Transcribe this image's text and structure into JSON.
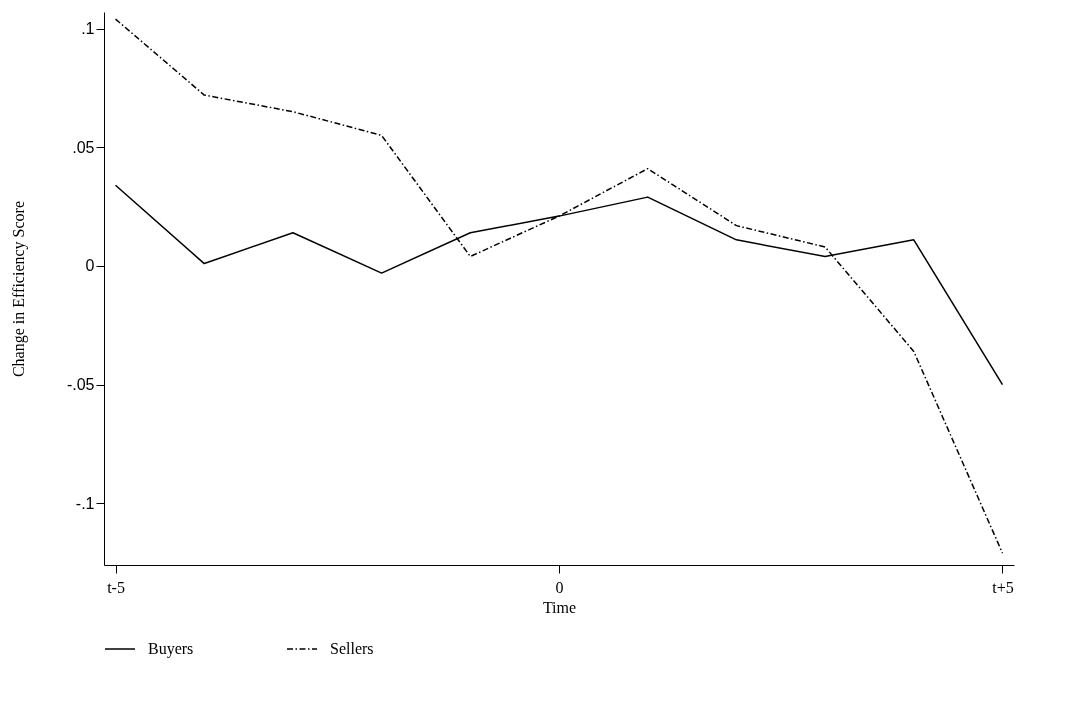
{
  "chart_data": {
    "type": "line",
    "xlabel": "Time",
    "ylabel": "Change in Efficiency Score",
    "categories": [
      "t-5",
      null,
      null,
      null,
      null,
      "0",
      null,
      null,
      null,
      null,
      "t+5"
    ],
    "series": [
      {
        "name": "Buyers",
        "color": "#000000",
        "line_style": "solid",
        "values": [
          0.034,
          0.001,
          0.014,
          -0.003,
          0.014,
          0.021,
          0.029,
          0.011,
          0.004,
          0.011,
          -0.05
        ]
      },
      {
        "name": "Sellers",
        "color": "#000000",
        "line_style": "dashdot",
        "values": [
          0.104,
          0.072,
          0.065,
          0.055,
          0.004,
          0.021,
          0.041,
          0.017,
          0.008,
          -0.036,
          -0.121
        ]
      }
    ],
    "ylim": [
      -0.126,
      0.107
    ],
    "yticks": [
      {
        "value": -0.1,
        "label": "-.1"
      },
      {
        "value": -0.05,
        "label": "-.05"
      },
      {
        "value": 0,
        "label": "0"
      },
      {
        "value": 0.05,
        "label": ".05"
      },
      {
        "value": 0.1,
        "label": ".1"
      }
    ],
    "grid": false,
    "legend": "bottom",
    "marker": "none"
  }
}
